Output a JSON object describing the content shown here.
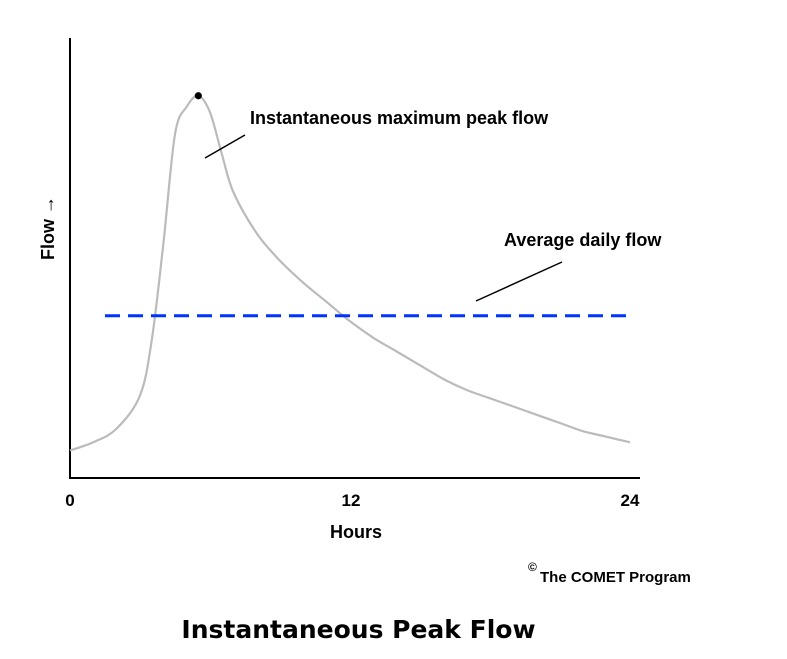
{
  "chart_data": {
    "type": "line",
    "x": [
      0,
      1,
      2,
      3,
      3.5,
      4,
      4.5,
      5,
      5.5,
      6,
      6.5,
      7,
      8,
      9,
      10,
      11,
      12,
      13,
      14,
      15,
      16,
      17,
      18,
      19,
      20,
      21,
      22,
      23,
      24
    ],
    "series": [
      {
        "values": [
          1.0,
          1.3,
          1.8,
          3.0,
          5.0,
          8.5,
          12.5,
          13.5,
          13.9,
          13.3,
          11.8,
          10.4,
          8.9,
          7.9,
          7.1,
          6.4,
          5.7,
          5.1,
          4.6,
          4.1,
          3.6,
          3.2,
          2.9,
          2.6,
          2.3,
          2.0,
          1.7,
          1.5,
          1.3
        ],
        "color": "#bbbbbb"
      }
    ],
    "average": {
      "label": "Average daily flow",
      "value": 5.9,
      "x_range": [
        1.5,
        24
      ],
      "color": "#0033ff",
      "style": "dashed"
    },
    "peak": {
      "label": "Instantaneous maximum peak flow",
      "x": 5.5,
      "y": 13.9
    },
    "xlabel": "Hours",
    "ylabel": "Flow →",
    "xticks": [
      "0",
      "12",
      "24"
    ],
    "xtick_values": [
      0,
      12,
      24
    ],
    "xlim": [
      0,
      24
    ],
    "ylim": [
      0,
      16
    ],
    "y_ticks_shown": false,
    "grid": false,
    "legend": "none"
  },
  "credit": {
    "mark": "©",
    "text": "The COMET Program"
  },
  "caption": "Instantaneous Peak Flow"
}
